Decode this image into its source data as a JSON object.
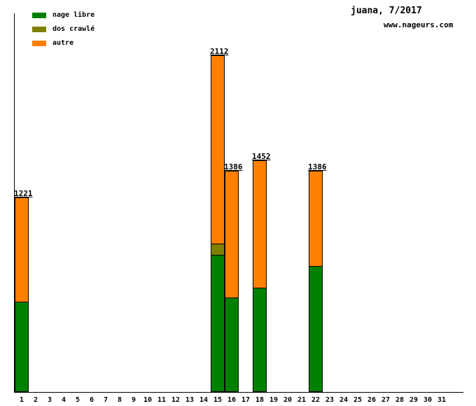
{
  "header": {
    "title": "juana, 7/2017",
    "website": "www.nageurs.com"
  },
  "legend": {
    "items": [
      {
        "label": "nage libre",
        "color": "#008000"
      },
      {
        "label": "dos crawlé",
        "color": "#808000"
      },
      {
        "label": "autre",
        "color": "#FF8000"
      }
    ]
  },
  "chart_data": {
    "type": "bar",
    "stacked": true,
    "title": "juana, 7/2017",
    "grid": false,
    "legend_position": "top-left",
    "y_axis_ticks": "none",
    "ylim": [
      0,
      2160
    ],
    "categories": [
      1,
      2,
      3,
      4,
      5,
      6,
      7,
      8,
      9,
      10,
      11,
      12,
      13,
      14,
      15,
      16,
      17,
      18,
      19,
      20,
      21,
      22,
      23,
      24,
      25,
      26,
      27,
      28,
      29,
      30,
      31
    ],
    "series": [
      {
        "name": "nage libre",
        "color": "#008000",
        "values": [
          560,
          0,
          0,
          0,
          0,
          0,
          0,
          0,
          0,
          0,
          0,
          0,
          0,
          0,
          856,
          588,
          0,
          650,
          0,
          0,
          0,
          786,
          0,
          0,
          0,
          0,
          0,
          0,
          0,
          0,
          0
        ]
      },
      {
        "name": "dos crawlé",
        "color": "#808000",
        "values": [
          0,
          0,
          0,
          0,
          0,
          0,
          0,
          0,
          0,
          0,
          0,
          0,
          0,
          0,
          70,
          0,
          0,
          0,
          0,
          0,
          0,
          0,
          0,
          0,
          0,
          0,
          0,
          0,
          0,
          0,
          0
        ]
      },
      {
        "name": "autre",
        "color": "#FF8000",
        "values": [
          661,
          0,
          0,
          0,
          0,
          0,
          0,
          0,
          0,
          0,
          0,
          0,
          0,
          0,
          1186,
          798,
          0,
          802,
          0,
          0,
          0,
          600,
          0,
          0,
          0,
          0,
          0,
          0,
          0,
          0,
          0
        ]
      }
    ],
    "totals": [
      1221,
      0,
      0,
      0,
      0,
      0,
      0,
      0,
      0,
      0,
      0,
      0,
      0,
      0,
      2112,
      1386,
      0,
      1452,
      0,
      0,
      0,
      1386,
      0,
      0,
      0,
      0,
      0,
      0,
      0,
      0,
      0
    ]
  }
}
